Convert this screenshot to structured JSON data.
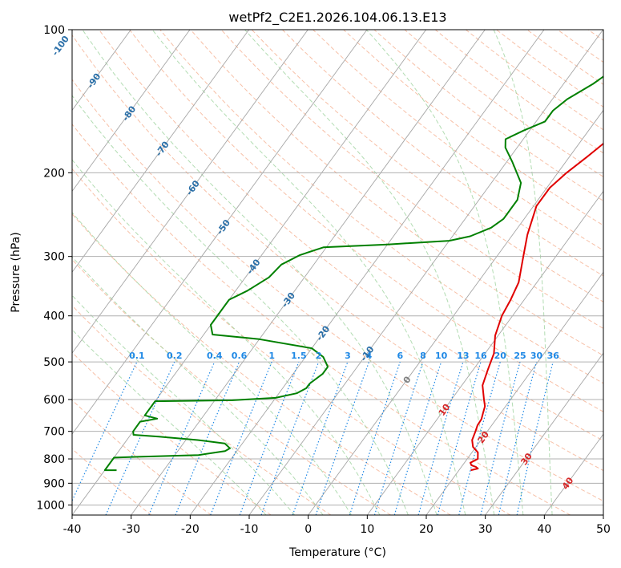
{
  "chart_data": {
    "type": "line",
    "title": "wetPf2_C2E1.2026.104.06.13.E13",
    "xlabel": "Temperature (°C)",
    "ylabel": "Pressure (hPa)",
    "xlim": [
      -40,
      50
    ],
    "ylim": [
      1050,
      100
    ],
    "y_scale": "log",
    "grid": true,
    "x_ticks": [
      -40,
      -30,
      -20,
      -10,
      0,
      10,
      20,
      30,
      40,
      50
    ],
    "y_ticks": [
      100,
      200,
      300,
      400,
      500,
      600,
      700,
      800,
      900,
      1000
    ],
    "y_tick_labels": [
      "100",
      "200",
      "300",
      "400",
      "500",
      "600",
      "700",
      "800",
      "900",
      "1000"
    ],
    "colors": {
      "temperature": "#e00000",
      "dewpoint": "#008000",
      "isotherm": "#a6a6a6",
      "dry_adiabat": "#f4a582",
      "moist_adiabat": "#9fd39f",
      "mixing_ratio": "#1e88e5",
      "isotherm_label": "#2a6fa8",
      "zero_label": "#808080",
      "warm_label": "#d62728"
    },
    "series": [
      {
        "key": "temperature",
        "points": [
          [
            22.0,
            845
          ],
          [
            23.0,
            838
          ],
          [
            22.5,
            832
          ],
          [
            21.5,
            825
          ],
          [
            21.0,
            815
          ],
          [
            21.8,
            800
          ],
          [
            21.0,
            775
          ],
          [
            19.5,
            755
          ],
          [
            18.5,
            730
          ],
          [
            18.0,
            700
          ],
          [
            17.6,
            680
          ],
          [
            17.5,
            660
          ],
          [
            17.0,
            640
          ],
          [
            16.5,
            620
          ],
          [
            15.5,
            600
          ],
          [
            13.5,
            560
          ],
          [
            12.5,
            520
          ],
          [
            11.5,
            480
          ],
          [
            9.5,
            440
          ],
          [
            8.2,
            400
          ],
          [
            7.7,
            370
          ],
          [
            6.9,
            340
          ],
          [
            4.5,
            300
          ],
          [
            2.5,
            270
          ],
          [
            0.5,
            235
          ],
          [
            0.5,
            215
          ],
          [
            1.5,
            200
          ],
          [
            3.0,
            185
          ],
          [
            4.5,
            170
          ],
          [
            5.2,
            155
          ],
          [
            5.5,
            140
          ],
          [
            6.5,
            130
          ],
          [
            8.0,
            118
          ],
          [
            9.5,
            110
          ],
          [
            11.0,
            104
          ],
          [
            12.0,
            100
          ]
        ]
      },
      {
        "key": "dewpoint",
        "points": [
          [
            -38.0,
            845
          ],
          [
            -40.0,
            845
          ],
          [
            -40.0,
            795
          ],
          [
            -36.0,
            792
          ],
          [
            -26.0,
            785
          ],
          [
            -22.0,
            770
          ],
          [
            -21.5,
            760
          ],
          [
            -23.0,
            742
          ],
          [
            -28.0,
            730
          ],
          [
            -35.0,
            718
          ],
          [
            -39.5,
            712
          ],
          [
            -40.0,
            700
          ],
          [
            -40.0,
            668
          ],
          [
            -37.5,
            658
          ],
          [
            -40.0,
            648
          ],
          [
            -40.0,
            605
          ],
          [
            -27.0,
            602
          ],
          [
            -20.0,
            595
          ],
          [
            -17.0,
            582
          ],
          [
            -16.0,
            568
          ],
          [
            -16.0,
            555
          ],
          [
            -15.0,
            530
          ],
          [
            -15.0,
            512
          ],
          [
            -17.0,
            488
          ],
          [
            -20.0,
            468
          ],
          [
            -30.0,
            448
          ],
          [
            -38.5,
            438
          ],
          [
            -40.0,
            418
          ],
          [
            -40.0,
            370
          ],
          [
            -38.0,
            354
          ],
          [
            -36.0,
            332
          ],
          [
            -35.5,
            312
          ],
          [
            -33.5,
            298
          ],
          [
            -30.5,
            287
          ],
          [
            -20.0,
            283
          ],
          [
            -10.0,
            278
          ],
          [
            -7.0,
            272
          ],
          [
            -4.5,
            261
          ],
          [
            -3.5,
            250
          ],
          [
            -3.5,
            228
          ],
          [
            -5.0,
            210
          ],
          [
            -9.0,
            190
          ],
          [
            -12.0,
            177
          ],
          [
            -13.0,
            170
          ],
          [
            -11.0,
            163
          ],
          [
            -8.5,
            156
          ],
          [
            -8.5,
            148
          ],
          [
            -7.5,
            140
          ],
          [
            -5.0,
            130
          ],
          [
            -3.5,
            122
          ],
          [
            -2.5,
            112
          ],
          [
            -1.5,
            104
          ],
          [
            -1.0,
            100
          ]
        ]
      }
    ],
    "isotherm_labels": [
      "-100",
      "-90",
      "-80",
      "-70",
      "-60",
      "-50",
      "-40",
      "-30",
      "-20",
      "-10",
      "0",
      "10",
      "20",
      "30",
      "40"
    ],
    "mixing_ratio_labels": [
      "0.1",
      "0.2",
      "0.4",
      "0.6",
      "1",
      "1.5",
      "2",
      "3",
      "4",
      "6",
      "8",
      "10",
      "13",
      "16",
      "20",
      "25",
      "30",
      "36"
    ]
  }
}
